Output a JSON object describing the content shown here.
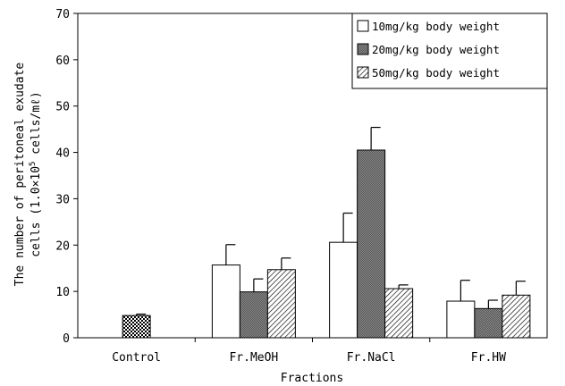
{
  "chart_data": {
    "type": "bar",
    "title": "",
    "xlabel": "Fractions",
    "ylabel_line1": "The number of peritoneal exudate",
    "ylabel_line2_prefix": "cells (1.0×10",
    "ylabel_line2_sup": "5",
    "ylabel_line2_suffix": " cells/mℓ)",
    "ylim": [
      0,
      70
    ],
    "yticks": [
      "0",
      "10",
      "20",
      "30",
      "40",
      "50",
      "60",
      "70"
    ],
    "grid": false,
    "legend_position": "top-right",
    "categories": [
      "Control",
      "Fr.MeOH",
      "Fr.NaCl",
      "Fr.HW"
    ],
    "control": {
      "value": 4.8,
      "error": 0.3,
      "pattern": "checker"
    },
    "series": [
      {
        "name": "10mg/kg body weight",
        "pattern": "white",
        "values": [
          null,
          15.7,
          20.6,
          7.9
        ],
        "errors": [
          null,
          4.4,
          6.3,
          4.5
        ]
      },
      {
        "name": "20mg/kg body weight",
        "pattern": "gray",
        "values": [
          null,
          9.9,
          40.5,
          6.3
        ],
        "errors": [
          null,
          2.8,
          4.9,
          1.8
        ]
      },
      {
        "name": "50mg/kg body weight",
        "pattern": "hatch",
        "values": [
          null,
          14.7,
          10.6,
          9.2
        ],
        "errors": [
          null,
          2.5,
          0.8,
          3.0
        ]
      }
    ]
  }
}
